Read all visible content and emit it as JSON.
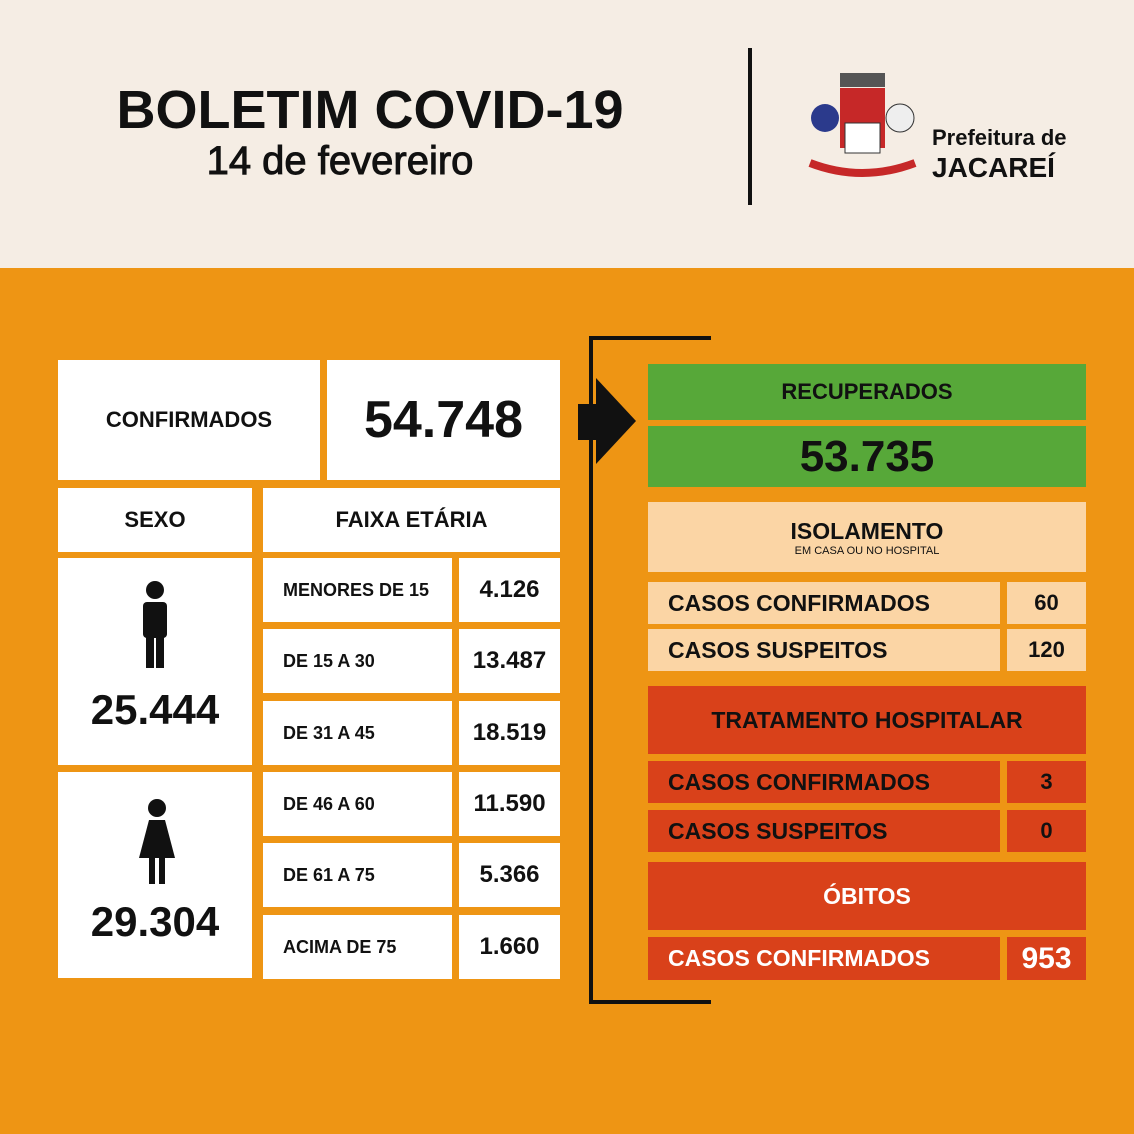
{
  "header": {
    "title": "BOLETIM COVID-19",
    "date": "14 de fevereiro",
    "logo": {
      "line1": "Prefeitura de",
      "line2": "JACAREÍ"
    }
  },
  "confirmados": {
    "label": "CONFIRMADOS",
    "value": "54.748"
  },
  "sexo": {
    "label": "SEXO",
    "male": "25.444",
    "female": "29.304"
  },
  "faixa_etaria": {
    "label": "FAIXA ETÁRIA",
    "rows": [
      [
        "MENORES DE 15",
        "4.126"
      ],
      [
        "DE 15 A 30",
        "13.487"
      ],
      [
        "DE 31 A 45",
        "18.519"
      ],
      [
        "DE 46 A 60",
        "11.590"
      ],
      [
        "DE 61 A 75",
        "5.366"
      ],
      [
        "ACIMA DE 75",
        "1.660"
      ]
    ]
  },
  "recuperados": {
    "label": "RECUPERADOS",
    "value": "53.735"
  },
  "isolamento": {
    "label": "ISOLAMENTO",
    "sublabel": "EM CASA OU NO HOSPITAL",
    "rows": [
      [
        "CASOS CONFIRMADOS",
        "60"
      ],
      [
        "CASOS SUSPEITOS",
        "120"
      ]
    ]
  },
  "tratamento": {
    "label": "TRATAMENTO HOSPITALAR",
    "rows": [
      [
        "CASOS CONFIRMADOS",
        "3"
      ],
      [
        "CASOS SUSPEITOS",
        "0"
      ]
    ]
  },
  "obitos": {
    "label": "ÓBITOS",
    "rows": [
      [
        "CASOS CONFIRMADOS",
        "953"
      ]
    ]
  }
}
